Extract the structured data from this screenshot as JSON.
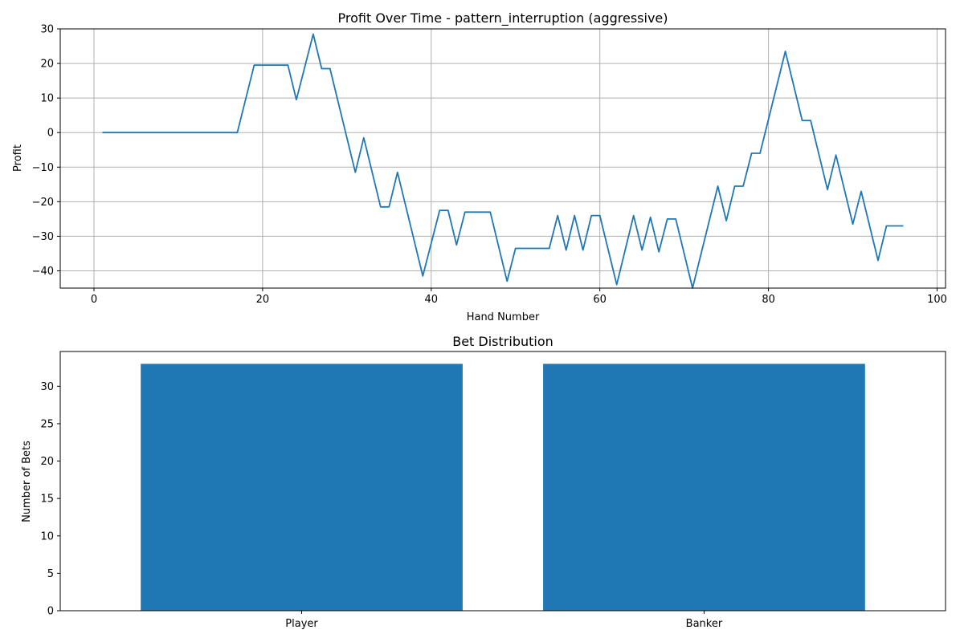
{
  "chart_data": [
    {
      "type": "line",
      "title": "Profit Over Time - pattern_interruption (aggressive)",
      "xlabel": "Hand Number",
      "ylabel": "Profit",
      "xlim": [
        -4,
        101
      ],
      "ylim": [
        -45,
        30
      ],
      "xticks": [
        0,
        20,
        40,
        60,
        80,
        100
      ],
      "yticks": [
        -40,
        -30,
        -20,
        -10,
        0,
        10,
        20,
        30
      ],
      "grid": true,
      "color": "#1f77b4",
      "series": [
        {
          "x": [
            1,
            17,
            19,
            23,
            24,
            26,
            27,
            28,
            31,
            32,
            34,
            35,
            36,
            39,
            41,
            42,
            43,
            44,
            47,
            49,
            50,
            54,
            55,
            56,
            57,
            58,
            59,
            60,
            62,
            64,
            65,
            66,
            67,
            68,
            69,
            71,
            74,
            75,
            76,
            77,
            78,
            79,
            82,
            84,
            85,
            87,
            88,
            90,
            91,
            93,
            94,
            96
          ],
          "y": [
            0,
            0,
            19.5,
            19.5,
            9.5,
            28.5,
            18.5,
            18.5,
            -11.5,
            -1.5,
            -21.5,
            -21.5,
            -11.5,
            -41.5,
            -22.5,
            -22.5,
            -32.5,
            -23,
            -23,
            -43,
            -33.5,
            -33.5,
            -24,
            -34,
            -24,
            -34,
            -24,
            -24,
            -44,
            -24,
            -34,
            -24.5,
            -34.5,
            -25,
            -25,
            -45,
            -15.5,
            -25.5,
            -15.5,
            -15.5,
            -6,
            -6,
            23.5,
            3.5,
            3.5,
            -16.5,
            -6.5,
            -26.5,
            -17,
            -37,
            -27,
            -27
          ]
        }
      ]
    },
    {
      "type": "bar",
      "title": "Bet Distribution",
      "xlabel": "",
      "ylabel": "Number of Bets",
      "categories": [
        "Player",
        "Banker"
      ],
      "values": [
        33,
        33
      ],
      "ylim": [
        0,
        34.65
      ],
      "yticks": [
        0,
        5,
        10,
        15,
        20,
        25,
        30
      ],
      "grid": false,
      "color": "#1f77b4"
    }
  ]
}
